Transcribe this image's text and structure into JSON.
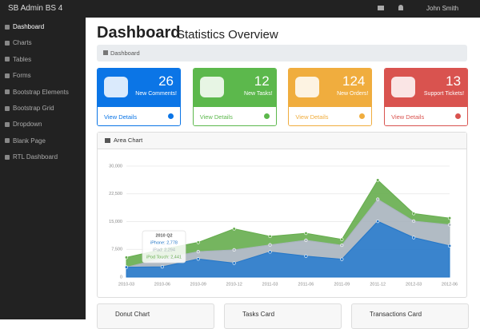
{
  "navbar": {
    "brand": "SB Admin BS 4",
    "user": "John Smith"
  },
  "sidebar": {
    "items": [
      "Dashboard",
      "Charts",
      "Tables",
      "Forms",
      "Bootstrap Elements",
      "Bootstrap Grid",
      "Dropdown",
      "Blank Page",
      "RTL Dashboard"
    ]
  },
  "header": {
    "title": "Dashboard",
    "subtitle": "Statistics Overview"
  },
  "breadcrumb": "Dashboard",
  "cards": [
    {
      "count": 26,
      "label": "New Comments!",
      "link": "View Details",
      "color": "#0b75e6"
    },
    {
      "count": 12,
      "label": "New Tasks!",
      "link": "View Details",
      "color": "#5cb84c"
    },
    {
      "count": 124,
      "label": "New Orders!",
      "link": "View Details",
      "color": "#f0ad3e"
    },
    {
      "count": 13,
      "label": "Support Tickets!",
      "link": "View Details",
      "color": "#d9534f"
    }
  ],
  "chart_data": {
    "type": "area",
    "title": "Area Chart",
    "stacked": true,
    "grid": true,
    "categories": [
      "2010-03",
      "2010-06",
      "2010-09",
      "2010-12",
      "2011-03",
      "2011-06",
      "2011-09",
      "2011-12",
      "2012-03",
      "2012-06"
    ],
    "series": [
      {
        "name": "iPhone",
        "color": "#2577c8",
        "values": [
          2666,
          2778,
          4912,
          3767,
          6810,
          5670,
          4820,
          15073,
          10687,
          8432
        ]
      },
      {
        "name": "iPad",
        "color": "#a9b4be",
        "values": [
          0,
          2294,
          1969,
          3597,
          1914,
          4293,
          3795,
          5967,
          4460,
          5713
        ]
      },
      {
        "name": "iPod Touch",
        "color": "#66ad4e",
        "values": [
          2647,
          2441,
          2501,
          5689,
          2293,
          1881,
          1588,
          5175,
          2028,
          1791
        ]
      }
    ],
    "ylim": [
      0,
      30000
    ],
    "yticks": [
      0,
      {
        "value": 7500,
        "label": "7,500"
      },
      {
        "value": 15000,
        "label": "15,000"
      },
      {
        "value": 22500,
        "label": "22,500"
      },
      {
        "value": 30000,
        "label": "30,000"
      }
    ],
    "tooltip": {
      "title": "2010 Q2",
      "lines": [
        "iPhone: 2,778",
        "iPad: 2,294",
        "iPod Touch: 2,441"
      ]
    }
  },
  "bottom_cards": [
    "Donut Chart",
    "Tasks Card",
    "Transactions Card"
  ]
}
